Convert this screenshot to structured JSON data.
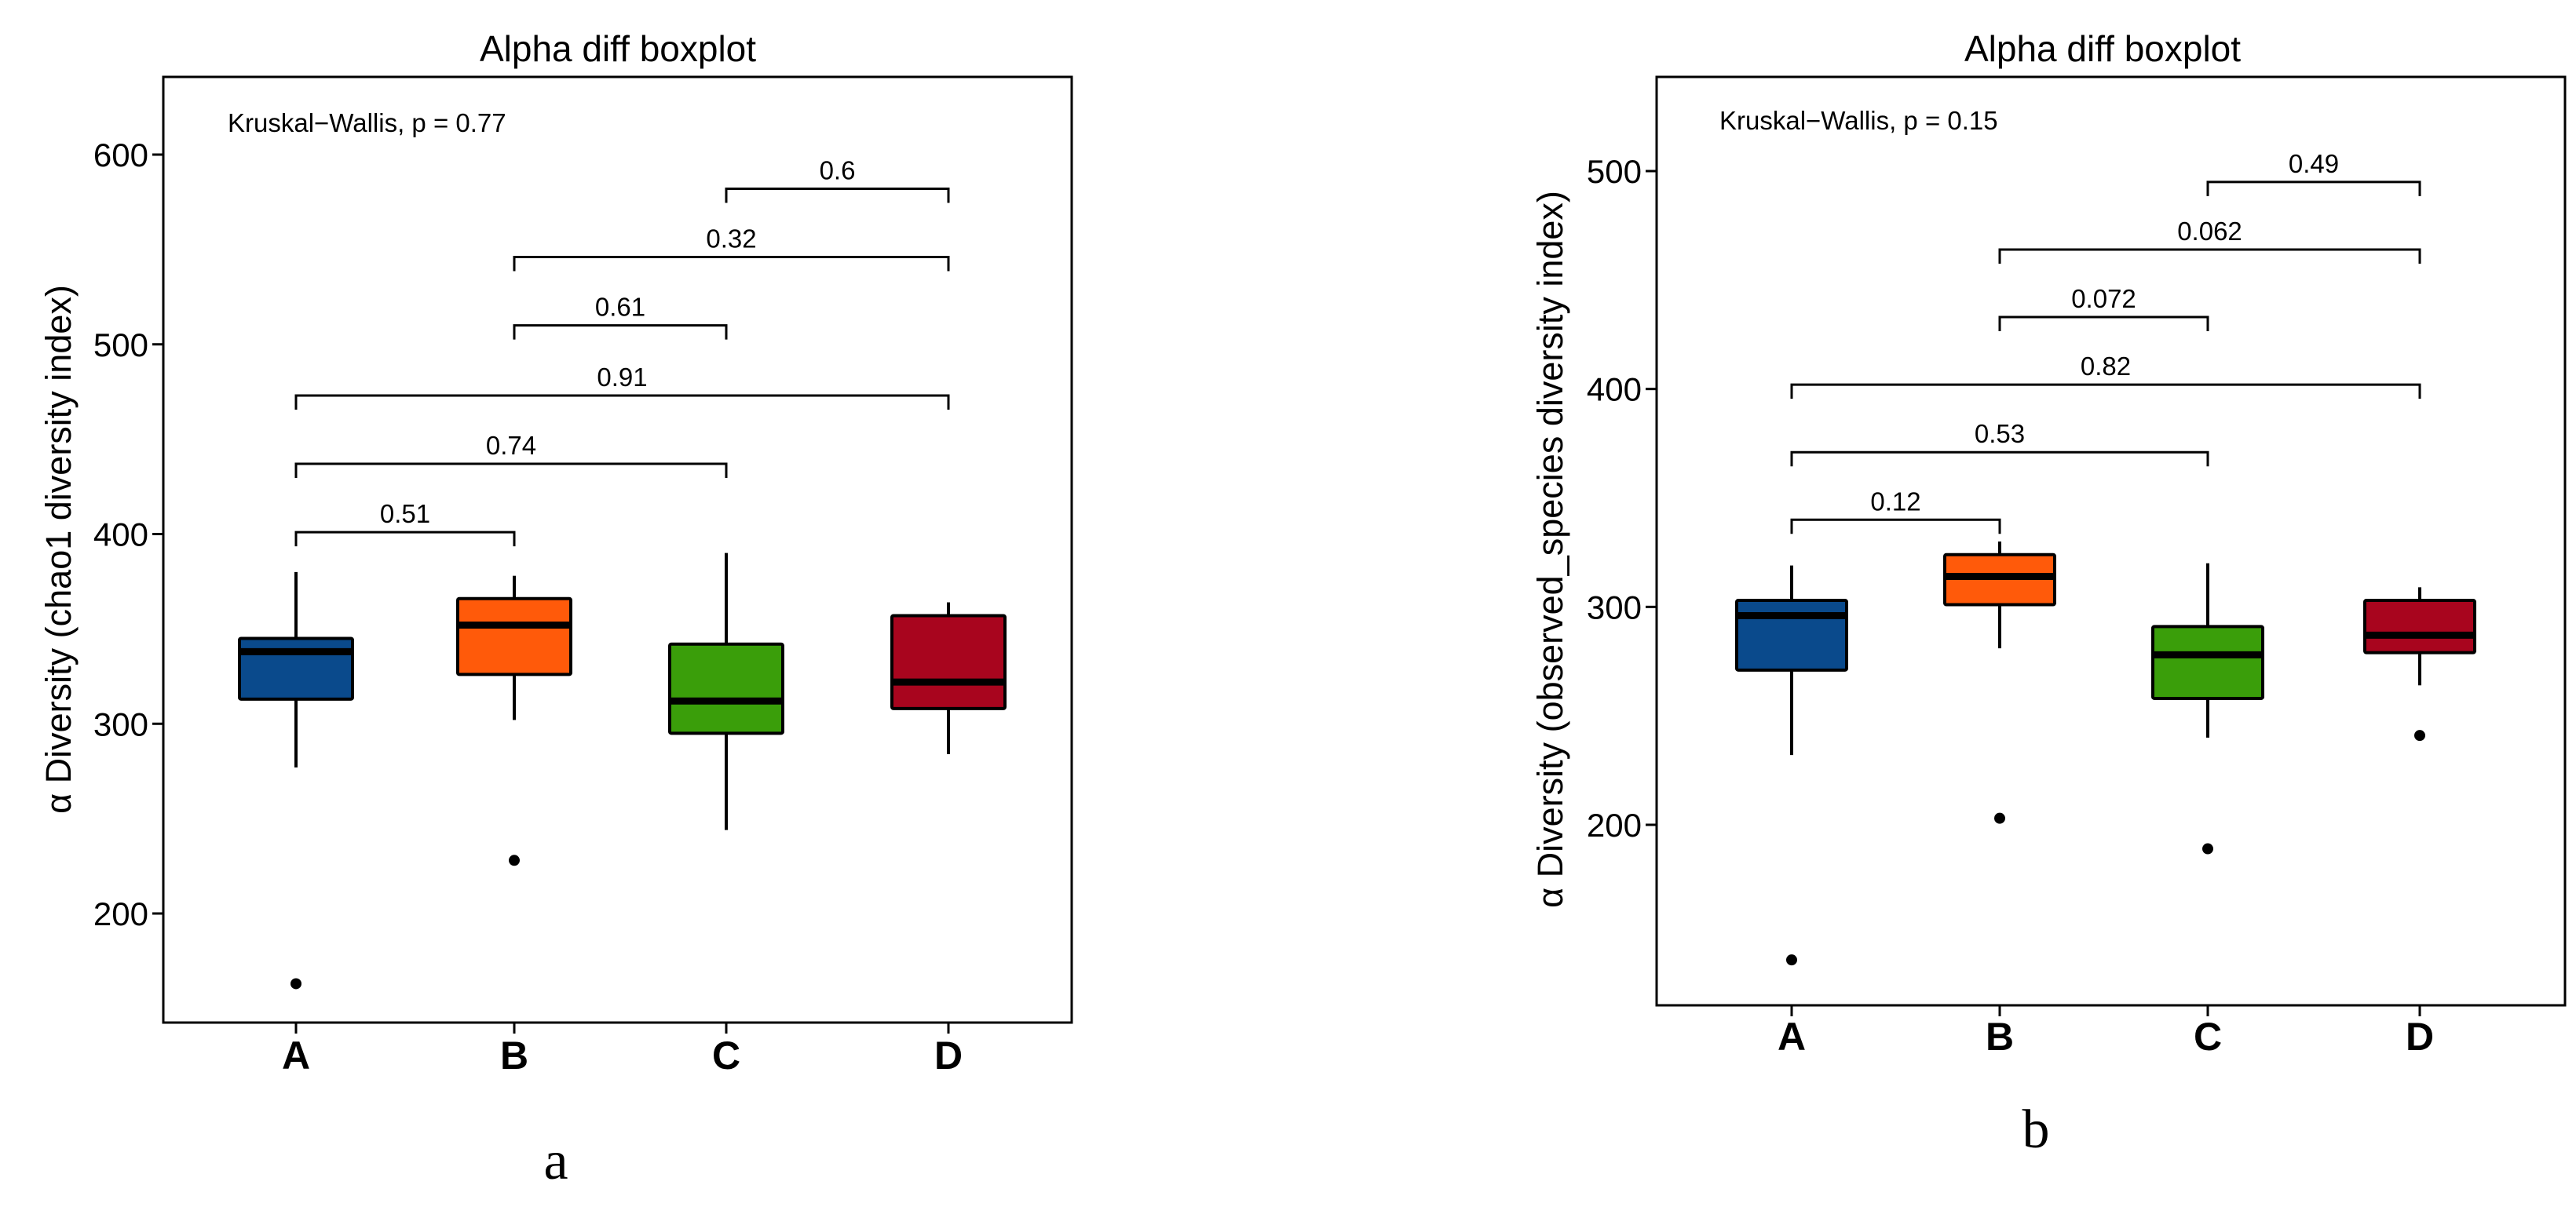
{
  "chart_data": [
    {
      "type": "boxplot",
      "panel_label": "a",
      "title": "Alpha diff boxplot",
      "ylabel": "α Diversity (chao1 diversity index)",
      "xlabel": "",
      "ylim": [
        140,
        640
      ],
      "yticks": [
        "200",
        "300",
        "400",
        "500",
        "600"
      ],
      "annotation": "Kruskal−Wallis, p = 0.77",
      "categories": [
        "A",
        "B",
        "C",
        "D"
      ],
      "colors": [
        "#0a4a8c",
        "#ff5a0a",
        "#3a9e0a",
        "#a8051e"
      ],
      "boxes": [
        {
          "group": "A",
          "whisker_low": 277,
          "q1": 313,
          "median": 338,
          "q3": 345,
          "whisker_high": 380,
          "outliers": [
            163
          ]
        },
        {
          "group": "B",
          "whisker_low": 302,
          "q1": 326,
          "median": 352,
          "q3": 366,
          "whisker_high": 378,
          "outliers": [
            228
          ]
        },
        {
          "group": "C",
          "whisker_low": 244,
          "q1": 295,
          "median": 312,
          "q3": 342,
          "whisker_high": 390,
          "outliers": []
        },
        {
          "group": "D",
          "whisker_low": 284,
          "q1": 308,
          "median": 322,
          "q3": 357,
          "whisker_high": 364,
          "outliers": []
        }
      ],
      "comparisons": [
        {
          "from": "A",
          "to": "B",
          "y": 401,
          "label": "0.51"
        },
        {
          "from": "A",
          "to": "C",
          "y": 437,
          "label": "0.74"
        },
        {
          "from": "A",
          "to": "D",
          "y": 473,
          "label": "0.91"
        },
        {
          "from": "B",
          "to": "C",
          "y": 510,
          "label": "0.61"
        },
        {
          "from": "B",
          "to": "D",
          "y": 546,
          "label": "0.32"
        },
        {
          "from": "C",
          "to": "D",
          "y": 582,
          "label": "0.6"
        }
      ]
    },
    {
      "type": "boxplot",
      "panel_label": "b",
      "title": "Alpha diff boxplot",
      "ylabel": "α Diversity (observed_species diversity index)",
      "xlabel": "",
      "ylim": [
        120,
        545
      ],
      "yticks": [
        "200",
        "300",
        "400",
        "500"
      ],
      "annotation": "Kruskal−Wallis, p = 0.15",
      "categories": [
        "A",
        "B",
        "C",
        "D"
      ],
      "colors": [
        "#0a4a8c",
        "#ff5a0a",
        "#3a9e0a",
        "#a8051e"
      ],
      "boxes": [
        {
          "group": "A",
          "whisker_low": 232,
          "q1": 271,
          "median": 296,
          "q3": 303,
          "whisker_high": 319,
          "outliers": [
            138
          ]
        },
        {
          "group": "B",
          "whisker_low": 281,
          "q1": 301,
          "median": 314,
          "q3": 324,
          "whisker_high": 330,
          "outliers": [
            203
          ]
        },
        {
          "group": "C",
          "whisker_low": 240,
          "q1": 258,
          "median": 278,
          "q3": 291,
          "whisker_high": 320,
          "outliers": [
            189
          ]
        },
        {
          "group": "D",
          "whisker_low": 264,
          "q1": 279,
          "median": 287,
          "q3": 303,
          "whisker_high": 309,
          "outliers": [
            241
          ]
        }
      ],
      "comparisons": [
        {
          "from": "A",
          "to": "B",
          "y": 340,
          "label": "0.12"
        },
        {
          "from": "A",
          "to": "C",
          "y": 371,
          "label": "0.53"
        },
        {
          "from": "A",
          "to": "D",
          "y": 402,
          "label": "0.82"
        },
        {
          "from": "B",
          "to": "C",
          "y": 433,
          "label": "0.072"
        },
        {
          "from": "B",
          "to": "D",
          "y": 464,
          "label": "0.062"
        },
        {
          "from": "C",
          "to": "D",
          "y": 495,
          "label": "0.49"
        }
      ]
    }
  ]
}
